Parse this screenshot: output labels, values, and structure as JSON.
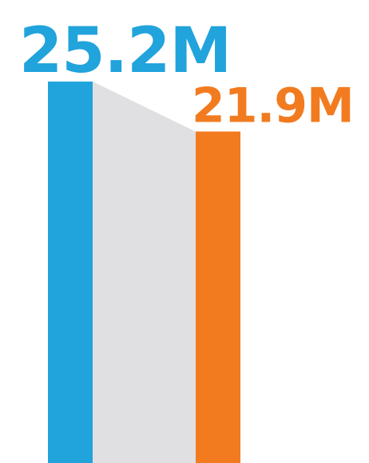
{
  "chart_data": {
    "type": "bar",
    "categories": [
      "",
      ""
    ],
    "values": [
      25.2,
      21.9
    ],
    "data_labels": [
      "25.2M",
      "21.9M"
    ],
    "colors": [
      "#21a3dc",
      "#f27b20"
    ],
    "connector_color": "#e0e0e2",
    "title": "",
    "xlabel": "",
    "ylabel": "",
    "ylim": [
      0,
      25.2
    ],
    "grid": false,
    "legend": "none"
  }
}
